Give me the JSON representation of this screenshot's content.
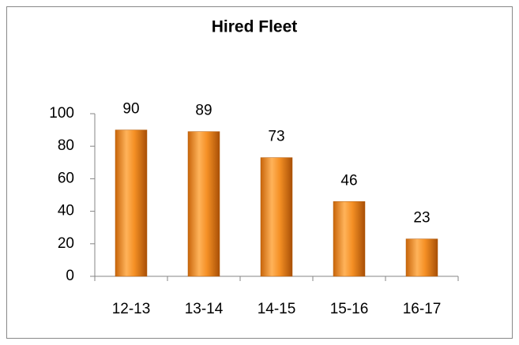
{
  "chart_data": {
    "type": "bar",
    "title": "Hired Fleet",
    "categories": [
      "12-13",
      "13-14",
      "14-15",
      "15-16",
      "16-17"
    ],
    "values": [
      90,
      89,
      73,
      46,
      23
    ],
    "color": "#f0901e",
    "ylim": [
      0,
      100
    ],
    "yticks": [
      0,
      20,
      40,
      60,
      80,
      100
    ],
    "grid": false
  }
}
